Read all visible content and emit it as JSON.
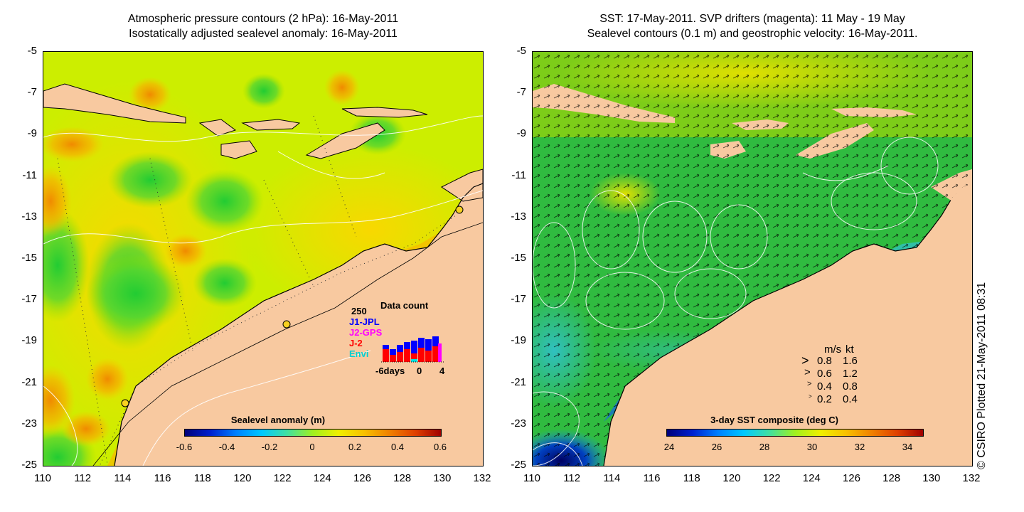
{
  "left_panel": {
    "title_line1": "Atmospheric pressure contours (2 hPa): 16-May-2011",
    "title_line2": "Isostatically adjusted sealevel anomaly: 16-May-2011",
    "colorbar": {
      "title": "Sealevel anomaly (m)",
      "ticks": [
        "-0.6",
        "-0.4",
        "-0.2",
        "0",
        "0.2",
        "0.4",
        "0.6"
      ]
    },
    "data_count": {
      "title": "Data count",
      "max_label": "250",
      "series": [
        {
          "name": "J1-JPL",
          "color": "#0000ff"
        },
        {
          "name": "J2-GPS",
          "color": "#ff00ff"
        },
        {
          "name": "J-2",
          "color": "#ff0000"
        },
        {
          "name": "Envi",
          "color": "#00e0e0"
        }
      ],
      "x_labels": [
        "-6days",
        "0",
        "4"
      ]
    }
  },
  "right_panel": {
    "title_line1": "SST: 17-May-2011. SVP drifters (magenta): 11 May - 19 May",
    "title_line2": "Sealevel contours (0.1 m) and geostrophic velocity: 16-May-2011.",
    "colorbar": {
      "title": "3-day SST composite (deg C)",
      "ticks": [
        "24",
        "26",
        "28",
        "30",
        "32",
        "34"
      ]
    },
    "speed_legend": {
      "header_ms": "m/s",
      "header_kt": "kt",
      "rows": [
        {
          "ms": "0.8",
          "kt": "1.6"
        },
        {
          "ms": "0.6",
          "kt": "1.2"
        },
        {
          "ms": "0.4",
          "kt": "0.8"
        },
        {
          "ms": "0.2",
          "kt": "0.4"
        }
      ]
    }
  },
  "axes": {
    "y_ticks": [
      "-5",
      "-7",
      "-9",
      "-11",
      "-13",
      "-15",
      "-17",
      "-19",
      "-21",
      "-23",
      "-25"
    ],
    "x_ticks": [
      "110",
      "112",
      "114",
      "116",
      "118",
      "120",
      "122",
      "124",
      "126",
      "128",
      "130",
      "132"
    ]
  },
  "map": {
    "lon_range": [
      110,
      132
    ],
    "lat_range": [
      -25,
      -5
    ],
    "land_color": "#f8c9a0",
    "sea_base_left": "#d6f000",
    "sea_base_right": "#22bb44"
  },
  "copyright": "© CSIRO Plotted 21-May-2011 08:31"
}
